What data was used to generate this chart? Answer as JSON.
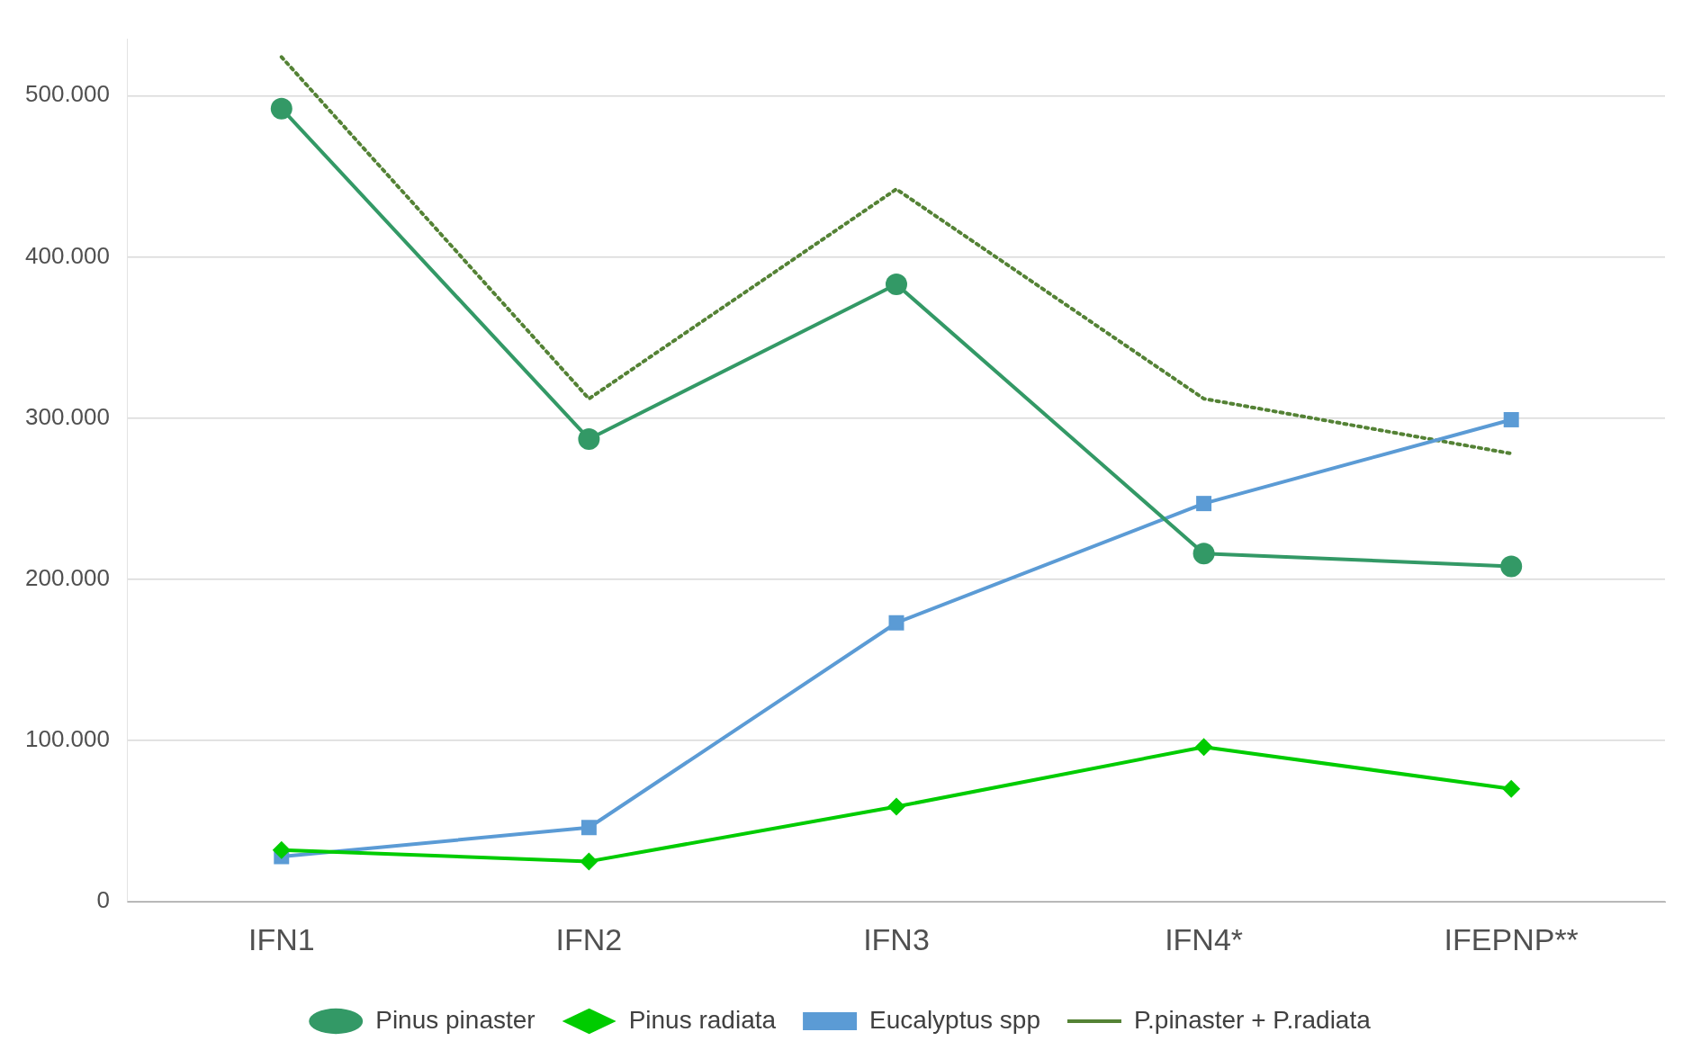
{
  "chart_data": {
    "type": "line",
    "categories": [
      "IFN1",
      "IFN2",
      "IFN3",
      "IFN4*",
      "IFEPNP**"
    ],
    "series": [
      {
        "name": "Pinus pinaster",
        "color": "#339966",
        "marker": "circle",
        "line_style": "solid",
        "values": [
          492000,
          287000,
          383000,
          216000,
          208000
        ]
      },
      {
        "name": "Pinus radiata",
        "color": "#00cc00",
        "marker": "diamond",
        "line_style": "solid",
        "values": [
          32000,
          25000,
          59000,
          96000,
          70000
        ]
      },
      {
        "name": "Eucalyptus spp",
        "color": "#5b9bd5",
        "marker": "square",
        "line_style": "solid",
        "values": [
          28000,
          46000,
          173000,
          247000,
          299000
        ]
      },
      {
        "name": "P.pinaster + P.radiata",
        "color": "#548235",
        "marker": "none",
        "line_style": "dotted",
        "values": [
          524000,
          312000,
          442000,
          312000,
          278000
        ]
      }
    ],
    "ylim": [
      0,
      535000
    ],
    "yticks": [
      0,
      {
        "value": 100000,
        "label": "100.000"
      },
      {
        "value": 200000,
        "label": "200.000"
      },
      {
        "value": 300000,
        "label": "300.000"
      },
      {
        "value": 400000,
        "label": "400.000"
      },
      {
        "value": 500000,
        "label": "500.000"
      }
    ],
    "grid": "y",
    "legend": "bottom"
  }
}
